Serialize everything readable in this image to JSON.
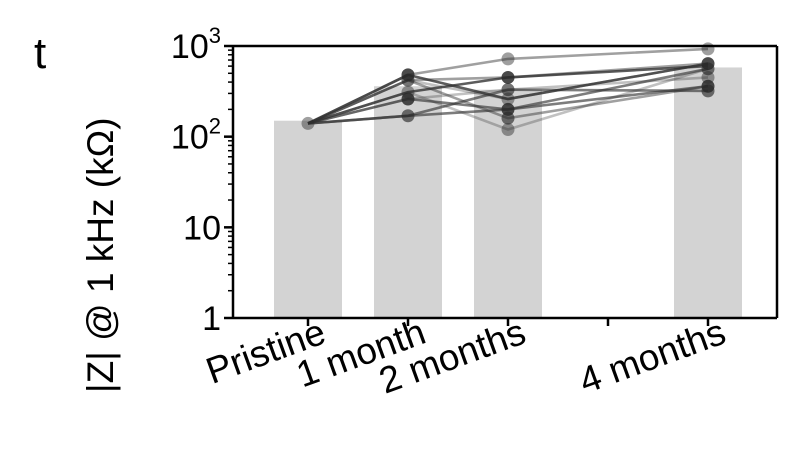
{
  "panel_label": "t",
  "chart_data": {
    "type": "bar",
    "yscale": "log",
    "ylim": [
      1,
      1000
    ],
    "ylabel": "|Z| @ 1 kHz (kΩ)",
    "xlabel": "",
    "title": "",
    "grid": false,
    "x_timepoints_months": [
      0,
      1,
      2,
      4
    ],
    "categories": [
      "Pristine",
      "1 month",
      "2 months",
      "4 months"
    ],
    "y_ticks": [
      {
        "value": 1,
        "base": "1",
        "exp": ""
      },
      {
        "value": 10,
        "base": "10",
        "exp": ""
      },
      {
        "value": 100,
        "base": "10",
        "exp": "2"
      },
      {
        "value": 1000,
        "base": "10",
        "exp": "3"
      }
    ],
    "bar_values": [
      150,
      360,
      330,
      580
    ],
    "bar_color": "#d3d3d3",
    "line_color": "#333333",
    "points": [
      {
        "month": 0,
        "value": 140
      },
      {
        "month": 1,
        "value": 170
      },
      {
        "month": 1,
        "value": 260
      },
      {
        "month": 1,
        "value": 310
      },
      {
        "month": 1,
        "value": 420
      },
      {
        "month": 1,
        "value": 480
      },
      {
        "month": 2,
        "value": 120
      },
      {
        "month": 2,
        "value": 160
      },
      {
        "month": 2,
        "value": 200
      },
      {
        "month": 2,
        "value": 260
      },
      {
        "month": 2,
        "value": 330
      },
      {
        "month": 2,
        "value": 450
      },
      {
        "month": 2,
        "value": 720
      },
      {
        "month": 4,
        "value": 320
      },
      {
        "month": 4,
        "value": 360
      },
      {
        "month": 4,
        "value": 450
      },
      {
        "month": 4,
        "value": 560
      },
      {
        "month": 4,
        "value": 640
      },
      {
        "month": 4,
        "value": 930
      }
    ],
    "series": [
      {
        "values": [
          140,
          420,
          260,
          640
        ]
      },
      {
        "values": [
          140,
          480,
          720,
          930
        ]
      },
      {
        "values": [
          140,
          170,
          200,
          560
        ]
      },
      {
        "values": [
          140,
          310,
          450,
          600
        ]
      },
      {
        "values": [
          140,
          260,
          330,
          450
        ]
      },
      {
        "values": [
          140,
          420,
          160,
          360
        ]
      },
      {
        "values": [
          140,
          170,
          330,
          320
        ]
      },
      {
        "values": [
          140,
          480,
          260,
          640
        ]
      },
      {
        "values": [
          140,
          310,
          120,
          560
        ]
      },
      {
        "values": [
          140,
          420,
          450,
          640
        ]
      },
      {
        "values": [
          140,
          260,
          200,
          360
        ]
      }
    ]
  }
}
